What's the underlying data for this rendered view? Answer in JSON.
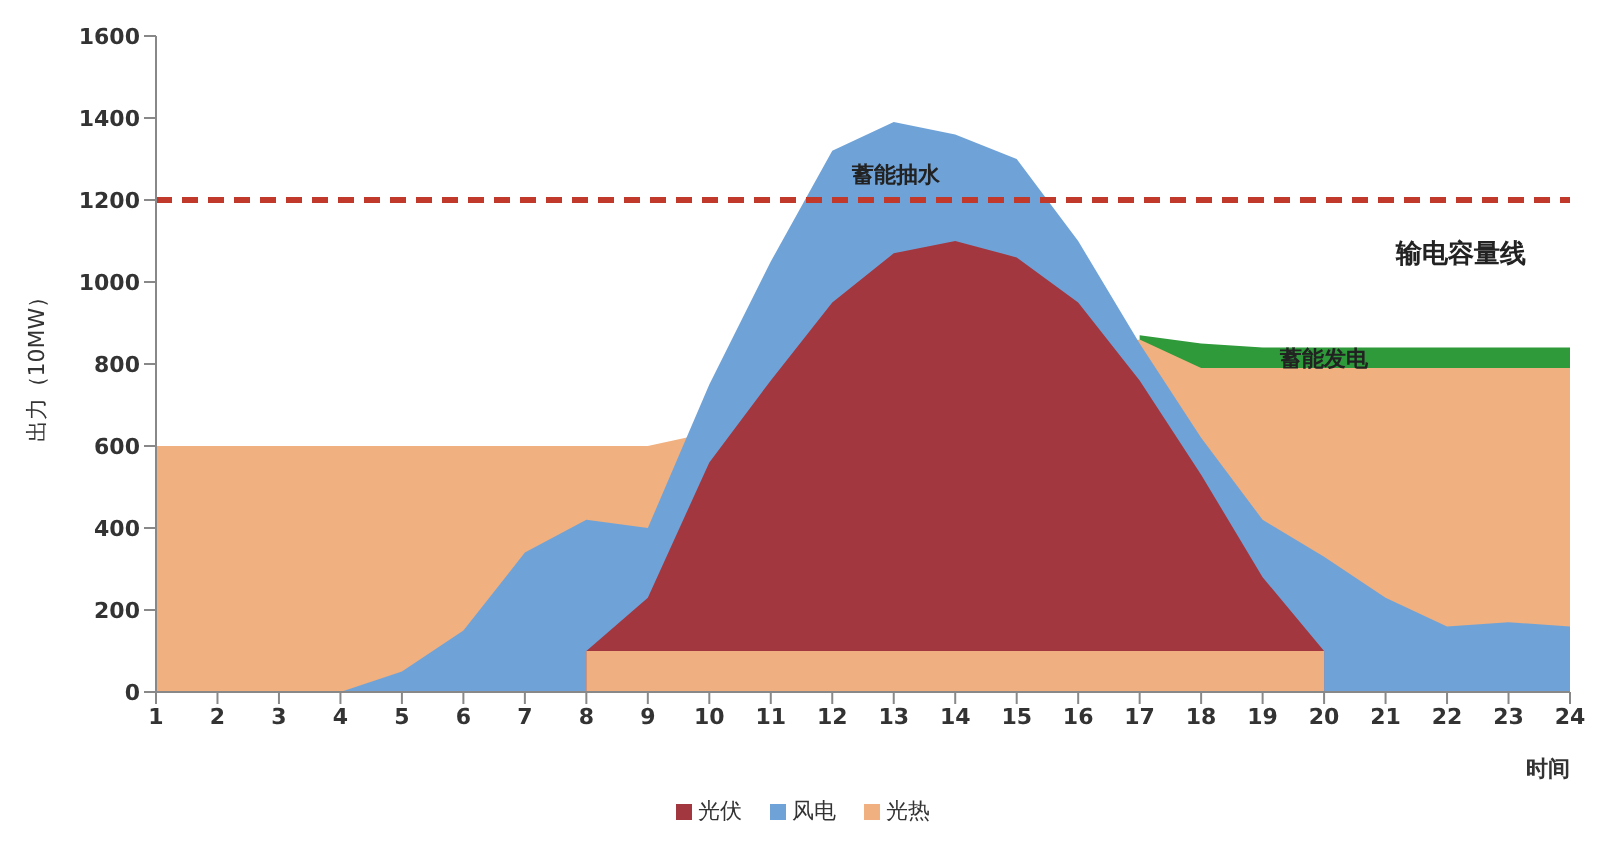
{
  "chart_data": {
    "type": "area",
    "ylabel": "出力（10MW）",
    "xlabel": "时间",
    "x": [
      1,
      2,
      3,
      4,
      5,
      6,
      7,
      8,
      9,
      10,
      11,
      12,
      13,
      14,
      15,
      16,
      17,
      18,
      19,
      20,
      21,
      22,
      23,
      24
    ],
    "xlim": [
      1,
      24
    ],
    "xticks": [
      1,
      2,
      3,
      4,
      5,
      6,
      7,
      8,
      9,
      10,
      11,
      12,
      13,
      14,
      15,
      16,
      17,
      18,
      19,
      20,
      21,
      22,
      23,
      24
    ],
    "ylim": [
      0,
      1600
    ],
    "yticks": [
      0,
      200,
      400,
      600,
      800,
      1000,
      1200,
      1400,
      1600
    ],
    "series": [
      {
        "color": "#2e9a3a",
        "values": [
          null,
          null,
          null,
          null,
          null,
          null,
          null,
          null,
          null,
          null,
          null,
          null,
          null,
          null,
          null,
          null,
          870,
          850,
          840,
          840,
          840,
          840,
          840,
          840
        ]
      },
      {
        "name": "光热",
        "color": "#f0b07f",
        "values": [
          600,
          600,
          600,
          600,
          600,
          600,
          600,
          600,
          600,
          null,
          null,
          null,
          null,
          null,
          null,
          null,
          860,
          790,
          790,
          790,
          790,
          790,
          790,
          790
        ]
      },
      {
        "name": "风电",
        "color": "#6fa3d8",
        "values": [
          0,
          0,
          0,
          0,
          50,
          150,
          340,
          420,
          400,
          750,
          1050,
          1320,
          1390,
          1360,
          1300,
          1100,
          850,
          620,
          420,
          330,
          230,
          160,
          170,
          160
        ]
      },
      {
        "name": "光伏",
        "color": "#a3373f",
        "values": [
          null,
          null,
          null,
          null,
          null,
          null,
          null,
          100,
          230,
          560,
          760,
          950,
          1070,
          1100,
          1060,
          950,
          760,
          530,
          280,
          100,
          null,
          null,
          null,
          null
        ]
      },
      {
        "color": "#efaf80",
        "values": [
          null,
          null,
          null,
          null,
          null,
          null,
          null,
          100,
          100,
          100,
          100,
          100,
          100,
          100,
          100,
          100,
          100,
          100,
          100,
          100,
          null,
          null,
          null,
          null
        ]
      }
    ],
    "ref_lines": [
      {
        "axis": "y",
        "value": 1200,
        "label": "输电容量线",
        "color": "#c0392b",
        "line_style": "dashed"
      }
    ],
    "annotations": [
      "蓄能抽水",
      {
        "text": "蓄能发电",
        "x": 20,
        "y": 810
      }
    ],
    "legend": "bottom",
    "grid": false
  }
}
